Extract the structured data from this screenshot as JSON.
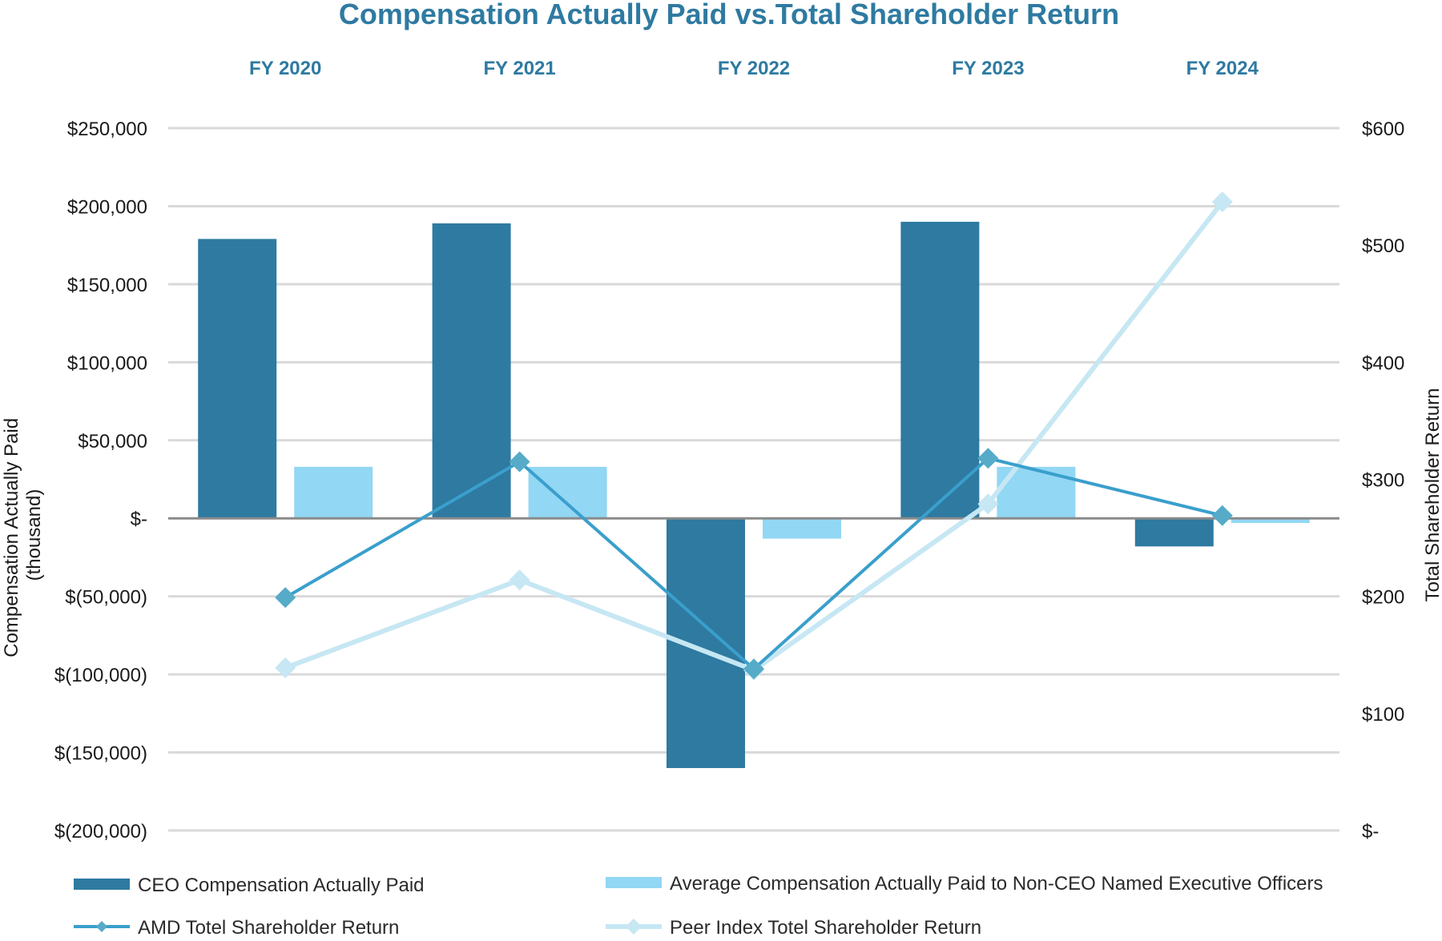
{
  "chart_data": {
    "type": "bar",
    "title": "Compensation Actually Paid vs.Total Shareholder Return",
    "categories": [
      "FY 2020",
      "FY 2021",
      "FY 2022",
      "FY 2023",
      "FY 2024"
    ],
    "ylabel_left": "Compensation Actually Paid\n(thousand)",
    "ylabel_right": "Total Shareholder Return",
    "ylim_left": [
      -200000,
      250000
    ],
    "ylim_right": [
      0,
      600
    ],
    "yticks_left": [
      {
        "value": 250000,
        "label": "$250,000"
      },
      {
        "value": 200000,
        "label": "$200,000"
      },
      {
        "value": 150000,
        "label": "$150,000"
      },
      {
        "value": 100000,
        "label": "$100,000"
      },
      {
        "value": 50000,
        "label": "$50,000"
      },
      {
        "value": 0,
        "label": "$-"
      },
      {
        "value": -50000,
        "label": "$(50,000)"
      },
      {
        "value": -100000,
        "label": "$(100,000)"
      },
      {
        "value": -150000,
        "label": "$(150,000)"
      },
      {
        "value": -200000,
        "label": "$(200,000)"
      }
    ],
    "yticks_right": [
      {
        "value": 600,
        "label": "$600"
      },
      {
        "value": 500,
        "label": "$500"
      },
      {
        "value": 400,
        "label": "$400"
      },
      {
        "value": 300,
        "label": "$300"
      },
      {
        "value": 200,
        "label": "$200"
      },
      {
        "value": 100,
        "label": "$100"
      },
      {
        "value": 0,
        "label": "$-"
      }
    ],
    "grid": true,
    "legend_position": "bottom",
    "bar_series": [
      {
        "name": "CEO Compensation Actually Paid",
        "color": "#2e7aa1",
        "values": [
          179000,
          189000,
          -160000,
          190000,
          -18000
        ]
      },
      {
        "name": "Average Compensation Actually Paid to Non-CEO Named Executive Officers",
        "color": "#92d7f4",
        "values": [
          33000,
          33000,
          -13000,
          33000,
          -3000
        ]
      }
    ],
    "line_series": [
      {
        "name": "AMD Totel Shareholder Return",
        "color": "#3a9fcc",
        "marker_color": "#56abc8",
        "values": [
          199,
          315,
          138,
          318,
          269
        ]
      },
      {
        "name": "Peer Index Totel Shareholder Return",
        "color": "#c6e7f3",
        "marker_color": "#c6e7f3",
        "values": [
          139,
          214,
          137,
          279,
          537
        ]
      }
    ]
  }
}
